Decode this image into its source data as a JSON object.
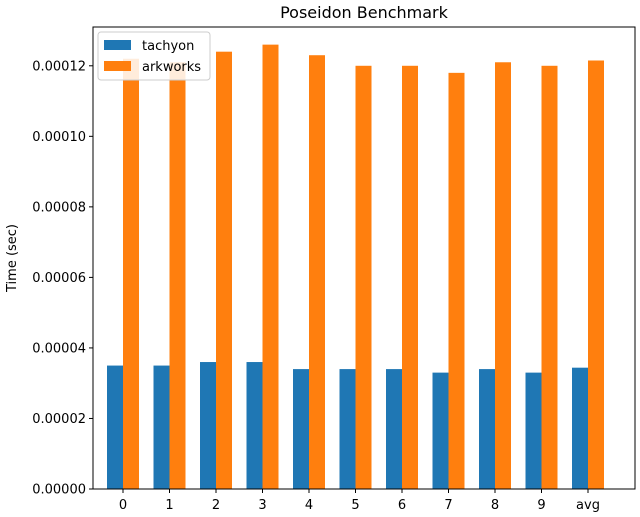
{
  "chart_data": {
    "type": "bar",
    "title": "Poseidon Benchmark",
    "xlabel": "",
    "ylabel": "Time (sec)",
    "categories": [
      "0",
      "1",
      "2",
      "3",
      "4",
      "5",
      "6",
      "7",
      "8",
      "9",
      "avg"
    ],
    "series": [
      {
        "name": "tachyon",
        "color": "#1f77b4",
        "values": [
          3.5e-05,
          3.5e-05,
          3.6e-05,
          3.6e-05,
          3.4e-05,
          3.4e-05,
          3.4e-05,
          3.3e-05,
          3.4e-05,
          3.3e-05,
          3.44e-05
        ]
      },
      {
        "name": "arkworks",
        "color": "#ff7f0e",
        "values": [
          0.000122,
          0.000121,
          0.000124,
          0.000126,
          0.000123,
          0.00012,
          0.00012,
          0.000118,
          0.000121,
          0.00012,
          0.0001215
        ]
      }
    ],
    "ylim": [
      0,
      0.000131
    ],
    "yticks": [
      "0.00000",
      "0.00002",
      "0.00004",
      "0.00006",
      "0.00008",
      "0.00010",
      "0.00012"
    ],
    "ytick_values": [
      0,
      2e-05,
      4e-05,
      6e-05,
      8e-05,
      0.0001,
      0.00012
    ],
    "grid": false,
    "legend": "top-left"
  }
}
